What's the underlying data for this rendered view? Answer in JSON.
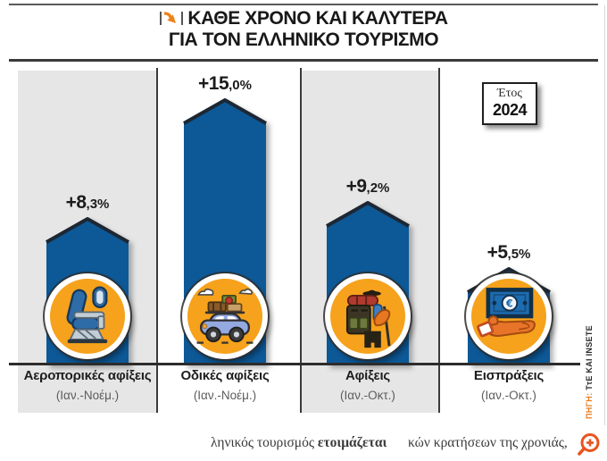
{
  "title": {
    "line1": "ΚΑΘΕ ΧΡΟΝΟ ΚΑΙ ΚΑΛΥΤΕΡΑ",
    "line2": "ΓΙΑ ΤΟΝ ΕΛΛΗΝΙΚΟ ΤΟΥΡΙΣΜΟ"
  },
  "year_box": {
    "label": "Έτος",
    "value": "2024"
  },
  "source": {
    "prefix": "ΠΗΓΗ:",
    "text": " ΤτΕ ΚΑΙ INSETE"
  },
  "footer": {
    "fragment1_normal": "ληνικός τουρισμός ",
    "fragment1_bold": "ετοιμάζεται",
    "fragment2": "κών κρατήσεων της χρονιάς,"
  },
  "colors": {
    "bar_blue": "#0d5896",
    "bar_outline": "#1d2733",
    "icon_circle_orange": "#f6a21c",
    "accent_orange": "#e87c1e",
    "magnifier_orange": "#e8541f",
    "panel_gray": "#e6e6e6",
    "rule_dark": "#3a3a3a",
    "label_dark": "#1c1c1c",
    "period_gray": "#5c5c5c"
  },
  "chart_data": {
    "type": "bar",
    "title": "ΚΑΘΕ ΧΡΟΝΟ ΚΑΙ ΚΑΛΥΤΕΡΑ ΓΙΑ ΤΟΝ ΕΛΛΗΝΙΚΟ ΤΟΥΡΙΣΜΟ",
    "subtitle_year": "2024",
    "unit": "% change",
    "categories": [
      "Αεροπορικές αφίξεις",
      "Οδικές αφίξεις",
      "Αφίξεις",
      "Εισπράξεις"
    ],
    "periods": [
      "(Ιαν.-Νοέμ.)",
      "(Ιαν.-Νοέμ.)",
      "(Ιαν.-Οκτ.)",
      "(Ιαν.-Οκτ.)"
    ],
    "values": [
      8.3,
      15.0,
      9.2,
      5.5
    ],
    "value_labels": [
      "+8,3%",
      "+15,0%",
      "+9,2%",
      "+5,5%"
    ],
    "icons": [
      "airplane-seat",
      "car-luggage",
      "backpacker",
      "money-hand"
    ],
    "ylim": [
      0,
      15
    ],
    "grid": false,
    "legend": false
  }
}
